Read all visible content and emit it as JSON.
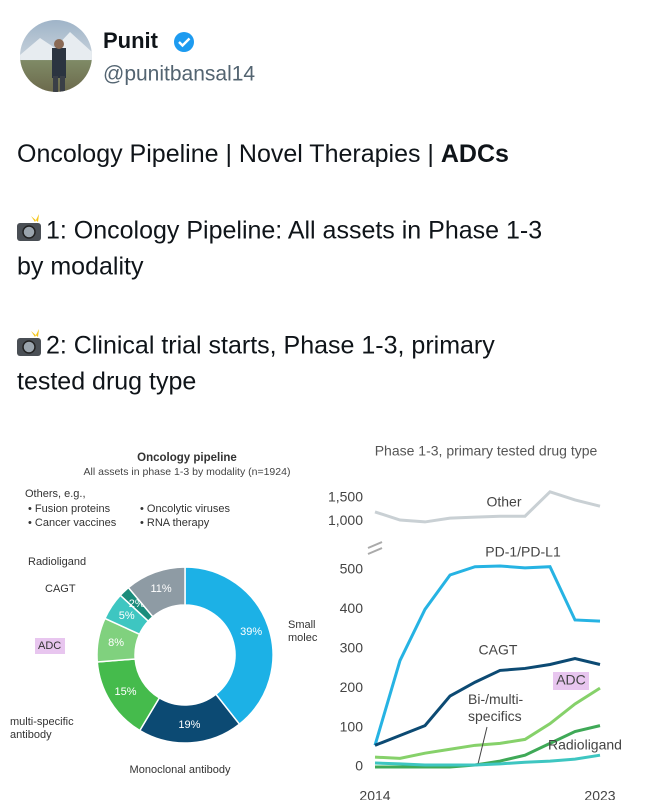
{
  "tweet": {
    "name": "Punit",
    "handle": "@punitbansal14",
    "headline": {
      "plain": "Oncology Pipeline | Novel Therapies | ",
      "bold": "ADCs"
    },
    "paragraphs": [
      {
        "lines": [
          "1: Oncology Pipeline: All assets in Phase 1-3",
          "by modality"
        ]
      },
      {
        "lines": [
          "2: Clinical trial starts, Phase 1-3, primary",
          "tested drug type"
        ]
      }
    ]
  },
  "chart_data": [
    {
      "type": "pie",
      "title": "Oncology pipeline",
      "subtitle": "All assets in phase 1-3 by modality (n=1924)",
      "note_items": [
        "• Fusion proteins",
        "• Oncolytic viruses",
        "• Cancer vaccines",
        "• RNA therapy"
      ],
      "categories": [
        "Small molec",
        "Monoclonal antibody",
        "multi-specific antibody",
        "ADC",
        "CAGT",
        "Radioligand",
        "Others, e.g.,"
      ],
      "values": [
        39,
        19,
        15,
        8,
        5,
        2,
        11
      ],
      "value_labels": [
        "39%",
        "19%",
        "15%",
        "8%",
        "5%",
        "2%",
        "11%"
      ],
      "colors": [
        "#1cb1e6",
        "#0c4a73",
        "#45bb4c",
        "#80d17e",
        "#3ec6c1",
        "#1b8c7b",
        "#8e9ba4"
      ]
    },
    {
      "type": "line",
      "title": "Phase 1-3, primary tested drug type",
      "x": [
        2014,
        2015,
        2016,
        2017,
        2018,
        2019,
        2020,
        2021,
        2022,
        2023
      ],
      "xlim": [
        2014,
        2023
      ],
      "xticks": [
        {
          "value": 2014,
          "label": "2014"
        },
        {
          "value": 2023,
          "label": "2023"
        }
      ],
      "ylim": [
        0,
        520
      ],
      "yticks": [
        0,
        100,
        200,
        300,
        400,
        500
      ],
      "upper_ylim": [
        800,
        1700
      ],
      "upper_yticks": [
        {
          "value": 1000,
          "label": "1,000"
        },
        {
          "value": 1500,
          "label": "1,500"
        }
      ],
      "series": [
        {
          "name": "Other",
          "color": "#c9d0d4",
          "axis": "upper",
          "values": [
            1200,
            1030,
            990,
            1070,
            1090,
            1110,
            1110,
            1620,
            1450,
            1320
          ]
        },
        {
          "name": "PD-1/PD-L1",
          "color": "#26b3e3",
          "values": [
            55,
            270,
            400,
            487,
            508,
            510,
            505,
            508,
            373,
            370
          ]
        },
        {
          "name": "CAGT",
          "color": "#0c4a73",
          "values": [
            55,
            80,
            105,
            180,
            215,
            245,
            250,
            260,
            275,
            260
          ]
        },
        {
          "name": "ADC",
          "color": "#86d16a",
          "values": [
            25,
            22,
            35,
            45,
            55,
            60,
            70,
            110,
            160,
            200
          ]
        },
        {
          "name": "Bi-/multi- specifics",
          "color": "#3fa957",
          "values": [
            0,
            0,
            0,
            0,
            5,
            15,
            30,
            60,
            90,
            105
          ]
        },
        {
          "name": "Radioligand",
          "color": "#3ec6c1",
          "values": [
            10,
            8,
            5,
            5,
            5,
            8,
            12,
            15,
            20,
            30
          ]
        }
      ]
    }
  ]
}
